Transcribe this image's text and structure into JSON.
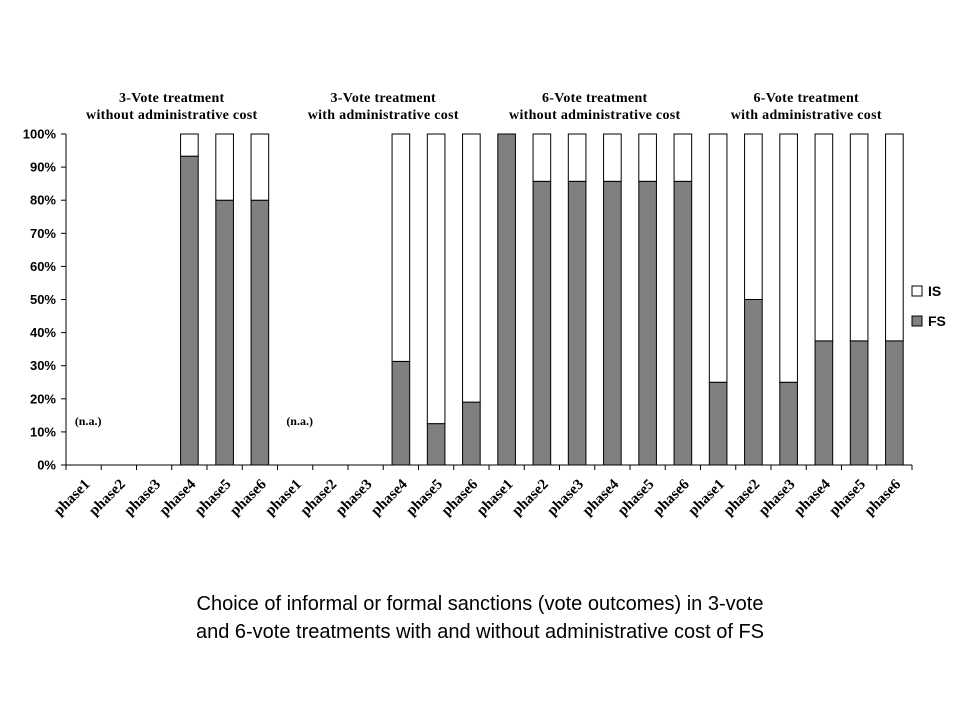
{
  "chart_data": {
    "type": "bar",
    "stacked": true,
    "percent": true,
    "groups": [
      {
        "title_line1": "3-Vote treatment",
        "title_line2": "without administrative cost",
        "annotation": "(n.a.)"
      },
      {
        "title_line1": "3-Vote treatment",
        "title_line2": "with administrative cost",
        "annotation": "(n.a.)"
      },
      {
        "title_line1": "6-Vote treatment",
        "title_line2": "without administrative cost",
        "annotation": ""
      },
      {
        "title_line1": "6-Vote treatment",
        "title_line2": "with administrative cost",
        "annotation": ""
      }
    ],
    "categories": [
      "phase1",
      "phase2",
      "phase3",
      "phase4",
      "phase5",
      "phase6",
      "phase1",
      "phase2",
      "phase3",
      "phase4",
      "phase5",
      "phase6",
      "phase1",
      "phase2",
      "phase3",
      "phase4",
      "phase5",
      "phase6",
      "phase1",
      "phase2",
      "phase3",
      "phase4",
      "phase5",
      "phase6"
    ],
    "series": [
      {
        "name": "FS",
        "color": "#808080",
        "values": [
          null,
          null,
          null,
          93.3,
          80,
          80,
          null,
          null,
          null,
          31.3,
          12.5,
          19,
          100,
          85.7,
          85.7,
          85.7,
          85.7,
          85.7,
          25,
          50,
          25,
          37.5,
          37.5,
          37.5
        ]
      },
      {
        "name": "IS",
        "color": "#ffffff",
        "values": [
          null,
          null,
          null,
          6.7,
          20,
          20,
          null,
          null,
          null,
          68.7,
          87.5,
          81,
          0,
          14.3,
          14.3,
          14.3,
          14.3,
          14.3,
          75,
          50,
          75,
          62.5,
          62.5,
          62.5
        ]
      }
    ],
    "y_ticks": [
      "0%",
      "10%",
      "20%",
      "30%",
      "40%",
      "50%",
      "60%",
      "70%",
      "80%",
      "90%",
      "100%"
    ],
    "ylim": [
      0,
      100
    ],
    "grid": false,
    "legend_position": "right"
  },
  "caption": {
    "line1": "Choice of informal or formal sanctions (vote outcomes) in 3-vote",
    "line2": "and 6-vote treatments with and without administrative cost of FS"
  }
}
